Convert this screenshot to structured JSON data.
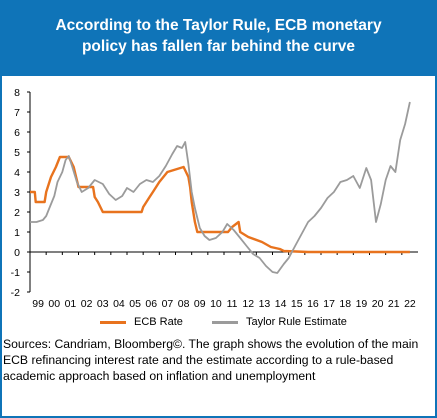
{
  "header": {
    "title_line1": "According  to the Taylor Rule, ECB monetary",
    "title_line2": "policy  has fallen far behind  the curve"
  },
  "colors": {
    "header_bg": "#0f74b8",
    "ecb_rate": "#e8731e",
    "taylor_rule": "#9b9b9b"
  },
  "chart_data": {
    "type": "line",
    "title": "According to the Taylor Rule, ECB monetary policy has fallen far behind the curve",
    "xlabel": "",
    "ylabel": "",
    "ylim": [
      -2,
      8
    ],
    "xlim": [
      1999,
      2023
    ],
    "y_ticks": [
      "-2",
      "-1",
      "0",
      "1",
      "2",
      "3",
      "4",
      "5",
      "6",
      "7",
      "8"
    ],
    "x_tick_labels": [
      "99",
      "00",
      "01",
      "02",
      "03",
      "04",
      "05",
      "06",
      "07",
      "08",
      "09",
      "10",
      "11",
      "12",
      "13",
      "14",
      "15",
      "16",
      "17",
      "18",
      "19",
      "20",
      "21",
      "22"
    ],
    "grid": false,
    "legend_position": "bottom",
    "series": [
      {
        "name": "ECB Rate",
        "x": [
          1999.0,
          1999.3,
          1999.35,
          1999.9,
          2000.0,
          2000.3,
          2000.6,
          2000.85,
          2001.4,
          2001.7,
          2001.85,
          2002.0,
          2002.9,
          2003.0,
          2003.2,
          2003.5,
          2005.9,
          2006.0,
          2006.2,
          2006.4,
          2006.6,
          2006.8,
          2007.0,
          2007.5,
          2008.5,
          2008.8,
          2008.9,
          2009.0,
          2009.2,
          2009.35,
          2011.25,
          2011.5,
          2011.9,
          2012.0,
          2012.5,
          2013.35,
          2013.9,
          2014.45,
          2014.7,
          2016.2,
          2022.5
        ],
        "y": [
          3.0,
          3.0,
          2.5,
          2.5,
          3.0,
          3.75,
          4.25,
          4.75,
          4.75,
          4.25,
          3.75,
          3.25,
          3.25,
          2.75,
          2.5,
          2.0,
          2.0,
          2.25,
          2.5,
          2.75,
          3.0,
          3.25,
          3.5,
          4.0,
          4.25,
          3.75,
          3.25,
          2.5,
          1.5,
          1.0,
          1.0,
          1.25,
          1.5,
          1.0,
          0.75,
          0.5,
          0.25,
          0.15,
          0.05,
          0.0,
          0.0
        ]
      },
      {
        "name": "Taylor Rule Estimate",
        "x": [
          1999.0,
          1999.4,
          1999.8,
          2000.0,
          2000.2,
          2000.5,
          2000.7,
          2001.0,
          2001.2,
          2001.4,
          2001.6,
          2001.9,
          2002.2,
          2002.6,
          2003.0,
          2003.5,
          2003.9,
          2004.3,
          2004.7,
          2005.0,
          2005.4,
          2005.8,
          2006.2,
          2006.6,
          2007.0,
          2007.4,
          2007.8,
          2008.1,
          2008.4,
          2008.6,
          2008.8,
          2009.0,
          2009.2,
          2009.5,
          2009.8,
          2010.1,
          2010.5,
          2010.9,
          2011.2,
          2011.6,
          2012.0,
          2012.4,
          2012.8,
          2013.2,
          2013.6,
          2014.0,
          2014.3,
          2014.7,
          2015.0,
          2015.4,
          2015.8,
          2016.2,
          2016.6,
          2017.0,
          2017.4,
          2017.8,
          2018.2,
          2018.6,
          2019.0,
          2019.4,
          2019.8,
          2020.1,
          2020.4,
          2020.7,
          2021.0,
          2021.3,
          2021.6,
          2021.9,
          2022.2,
          2022.5
        ],
        "y": [
          1.5,
          1.5,
          1.6,
          1.8,
          2.2,
          2.8,
          3.5,
          4.0,
          4.6,
          4.8,
          4.3,
          3.5,
          3.0,
          3.2,
          3.6,
          3.4,
          2.9,
          2.6,
          2.8,
          3.2,
          3.0,
          3.4,
          3.6,
          3.5,
          3.8,
          4.3,
          4.9,
          5.3,
          5.2,
          5.5,
          4.4,
          3.0,
          2.2,
          1.2,
          0.8,
          0.6,
          0.7,
          1.0,
          1.4,
          1.1,
          0.7,
          0.3,
          -0.1,
          -0.3,
          -0.7,
          -1.0,
          -1.05,
          -0.6,
          -0.3,
          0.3,
          0.9,
          1.5,
          1.8,
          2.2,
          2.7,
          3.0,
          3.5,
          3.6,
          3.8,
          3.2,
          4.2,
          3.6,
          1.5,
          2.4,
          3.6,
          4.3,
          4.0,
          5.6,
          6.4,
          7.5
        ]
      }
    ]
  },
  "legend": {
    "ecb_label": "ECB Rate",
    "taylor_label": "Taylor Rule Estimate"
  },
  "sources": {
    "text": "Sources: Candriam,  Bloomberg©. The graph shows the evolution of the main ECB refinancing interest rate and the estimate according to a rule-based academic approach based on inflation and unemployment"
  }
}
